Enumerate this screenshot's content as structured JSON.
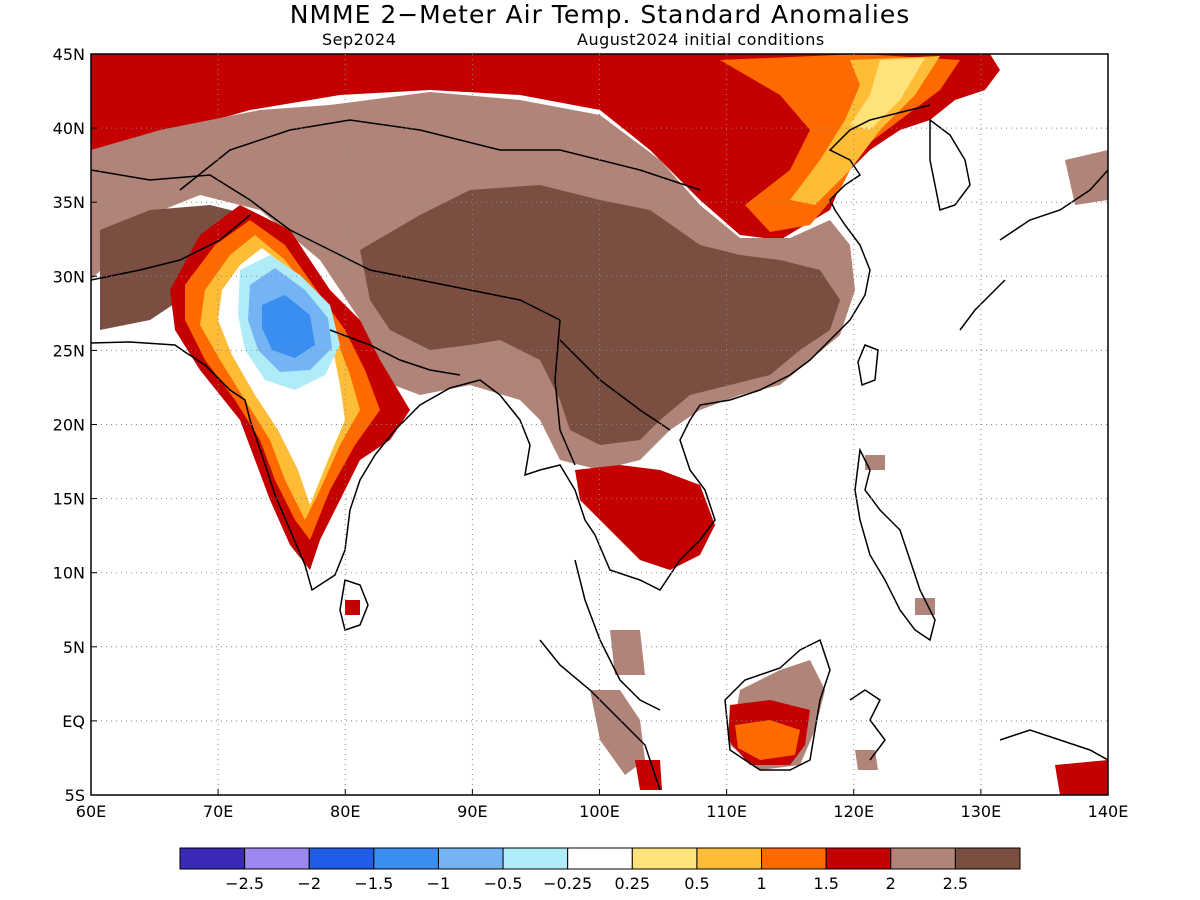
{
  "title": "NMME 2−Meter Air Temp. Standard Anomalies",
  "valid_month": "Sep2024",
  "init_conditions": "August2024 initial conditions",
  "map": {
    "lon_range": [
      60,
      140
    ],
    "lat_range": [
      -5,
      45
    ],
    "lon_ticks": [
      "60E",
      "70E",
      "80E",
      "90E",
      "100E",
      "110E",
      "120E",
      "130E",
      "140E"
    ],
    "lat_ticks": [
      "45N",
      "40N",
      "35N",
      "30N",
      "25N",
      "20N",
      "15N",
      "10N",
      "5N",
      "EQ",
      "5S"
    ],
    "gridlines": "dotted",
    "land_outline": "coastlines and country borders"
  },
  "colorbar": {
    "colors": [
      "#3a28b8",
      "#9c88f0",
      "#1f5ce8",
      "#3a8ef0",
      "#74b4f4",
      "#b0ecf8",
      "#ffffff",
      "#ffe27a",
      "#ffbc36",
      "#ff6a00",
      "#c40000",
      "#b08478",
      "#7a4e40"
    ],
    "labels": [
      "−2.5",
      "−2",
      "−1.5",
      "−1",
      "−0.5",
      "−0.25",
      "0.25",
      "0.5",
      "1",
      "1.5",
      "2",
      "2.5"
    ]
  }
}
